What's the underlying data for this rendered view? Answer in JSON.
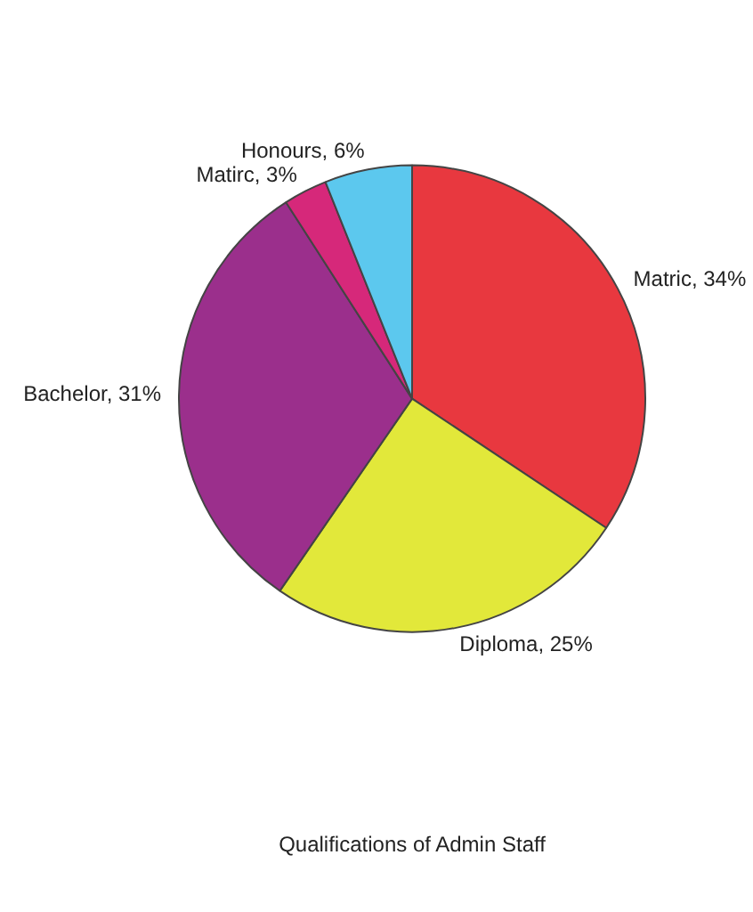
{
  "chart_data": {
    "type": "pie",
    "title": "Qualifications of Admin Staff",
    "categories": [
      "Matric",
      "Diploma",
      "Bachelor",
      "Matirc",
      "Honours"
    ],
    "values": [
      34,
      25,
      31,
      3,
      6
    ],
    "colors": [
      "#e8383f",
      "#e2e83a",
      "#9b2f8c",
      "#d6287a",
      "#5cc8ee"
    ],
    "value_labels": [
      "34%",
      "25%",
      "31%",
      "3%",
      "6%"
    ],
    "legend": false
  }
}
